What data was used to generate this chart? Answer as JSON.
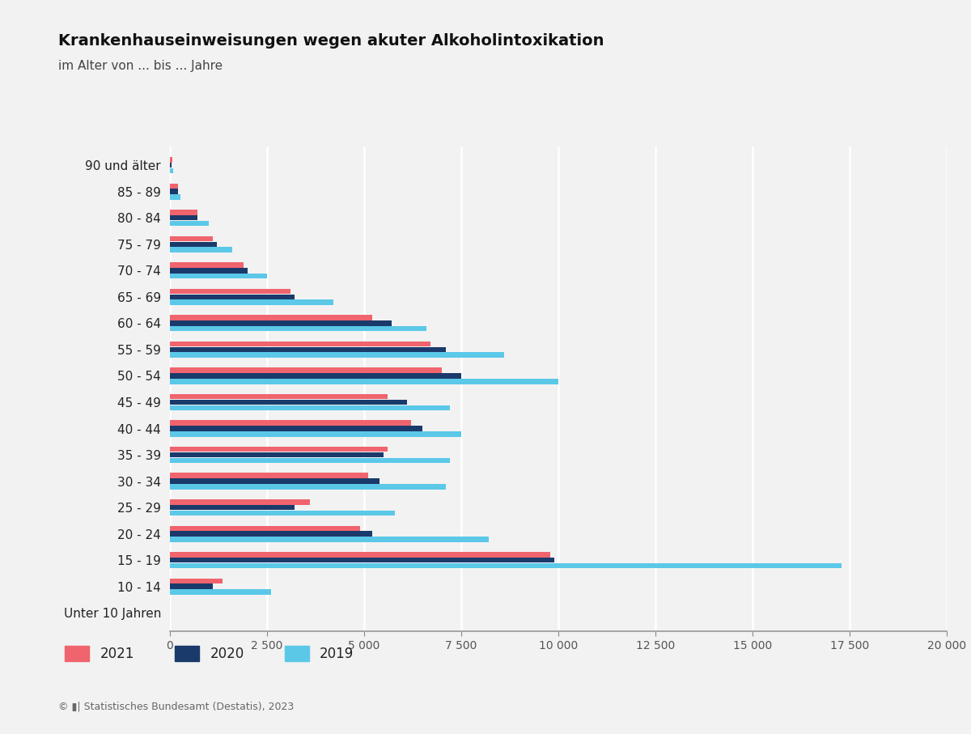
{
  "title": "Krankenhauseinweisungen wegen akuter Alkoholintoxikation",
  "subtitle": "im Alter von ... bis ... Jahre",
  "categories": [
    "Unter 10 Jahren",
    "10 - 14",
    "15 - 19",
    "20 - 24",
    "25 - 29",
    "30 - 34",
    "35 - 39",
    "40 - 44",
    "45 - 49",
    "50 - 54",
    "55 - 59",
    "60 - 64",
    "65 - 69",
    "70 - 74",
    "75 - 79",
    "80 - 84",
    "85 - 89",
    "90 und älter"
  ],
  "data_2021": [
    0,
    1350,
    9800,
    4900,
    3600,
    5100,
    5600,
    6200,
    5600,
    7000,
    6700,
    5200,
    3100,
    1900,
    1100,
    700,
    210,
    60
  ],
  "data_2020": [
    0,
    1100,
    9900,
    5200,
    3200,
    5400,
    5500,
    6500,
    6100,
    7500,
    7100,
    5700,
    3200,
    2000,
    1200,
    700,
    210,
    50
  ],
  "data_2019": [
    0,
    2600,
    17300,
    8200,
    5800,
    7100,
    7200,
    7500,
    7200,
    10000,
    8600,
    6600,
    4200,
    2500,
    1600,
    1000,
    280,
    80
  ],
  "color_2021": "#f0646e",
  "color_2020": "#1a3a6b",
  "color_2019": "#5bc8e8",
  "xlim": [
    0,
    20000
  ],
  "xticks": [
    0,
    2500,
    5000,
    7500,
    10000,
    12500,
    15000,
    17500,
    20000
  ],
  "xtick_labels": [
    "0",
    "2 500",
    "5 000",
    "7 500",
    "10 000",
    "12 500",
    "15 000",
    "17 500",
    "20 000"
  ],
  "footer": "© �| Statistisches Bundesamt (Destatis), 2023",
  "background_color": "#f2f2f2",
  "title_fontsize": 14,
  "subtitle_fontsize": 11,
  "tick_fontsize": 10,
  "ylabel_fontsize": 11
}
